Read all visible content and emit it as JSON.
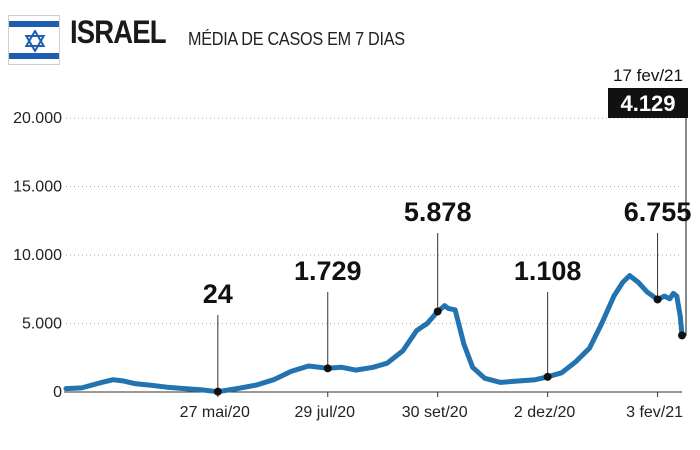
{
  "header": {
    "country": "ISRAEL",
    "subtitle": "MÉDIA DE CASOS EM 7 DIAS",
    "flag_icon": "israel-flag-icon"
  },
  "chart_data": {
    "type": "line",
    "title": "MÉDIA DE CASOS EM 7 DIAS",
    "xlabel": "",
    "ylabel": "",
    "ylim": [
      0,
      20000
    ],
    "yticks": [
      0,
      5000,
      10000,
      15000,
      20000
    ],
    "ytick_labels": [
      "0",
      "5.000",
      "10.000",
      "15.000",
      "20.000"
    ],
    "xticks": [
      "2020-05-27",
      "2020-07-29",
      "2020-09-30",
      "2020-12-02",
      "2021-02-03"
    ],
    "xtick_labels": [
      "27 mai/20",
      "29 jul/20",
      "30 set/20",
      "2 dez/20",
      "3 fev/21"
    ],
    "xlim": [
      "2020-03-01",
      "2021-02-17"
    ],
    "grid": "horizontal dotted",
    "line_color": "#2273b0",
    "series": [
      {
        "x": [
          "2020-03-01",
          "2020-03-10",
          "2020-03-20",
          "2020-03-28",
          "2020-04-03",
          "2020-04-10",
          "2020-04-18",
          "2020-04-28",
          "2020-05-08",
          "2020-05-18",
          "2020-05-27",
          "2020-06-07",
          "2020-06-18",
          "2020-06-28",
          "2020-07-08",
          "2020-07-18",
          "2020-07-29",
          "2020-08-06",
          "2020-08-14",
          "2020-08-24",
          "2020-09-01",
          "2020-09-10",
          "2020-09-18",
          "2020-09-24",
          "2020-09-30",
          "2020-10-04",
          "2020-10-06",
          "2020-10-10",
          "2020-10-15",
          "2020-10-20",
          "2020-10-27",
          "2020-11-05",
          "2020-11-15",
          "2020-11-25",
          "2020-12-02",
          "2020-12-10",
          "2020-12-18",
          "2020-12-26",
          "2021-01-02",
          "2021-01-09",
          "2021-01-14",
          "2021-01-18",
          "2021-01-23",
          "2021-01-28",
          "2021-02-03",
          "2021-02-07",
          "2021-02-10",
          "2021-02-12",
          "2021-02-14",
          "2021-02-16",
          "2021-02-17"
        ],
        "y": [
          250,
          300,
          650,
          900,
          800,
          600,
          500,
          350,
          250,
          150,
          24,
          250,
          500,
          900,
          1500,
          1900,
          1729,
          1800,
          1600,
          1800,
          2100,
          3000,
          4500,
          5000,
          5878,
          6300,
          6100,
          6000,
          3500,
          1800,
          1000,
          700,
          800,
          900,
          1108,
          1400,
          2200,
          3200,
          5000,
          7000,
          8000,
          8500,
          8000,
          7300,
          6755,
          7000,
          6800,
          7200,
          7000,
          5500,
          4129
        ]
      }
    ],
    "annotations": [
      {
        "x": "2020-05-27",
        "value": 24,
        "label": "24"
      },
      {
        "x": "2020-07-29",
        "value": 1729,
        "label": "1.729"
      },
      {
        "x": "2020-09-30",
        "value": 5878,
        "label": "5.878"
      },
      {
        "x": "2020-12-02",
        "value": 1108,
        "label": "1.108"
      },
      {
        "x": "2021-02-03",
        "value": 6755,
        "label": "6.755"
      },
      {
        "x": "2021-02-17",
        "value": 4129,
        "label": "4.129",
        "date_label": "17 fev/21",
        "highlight": true
      }
    ]
  }
}
